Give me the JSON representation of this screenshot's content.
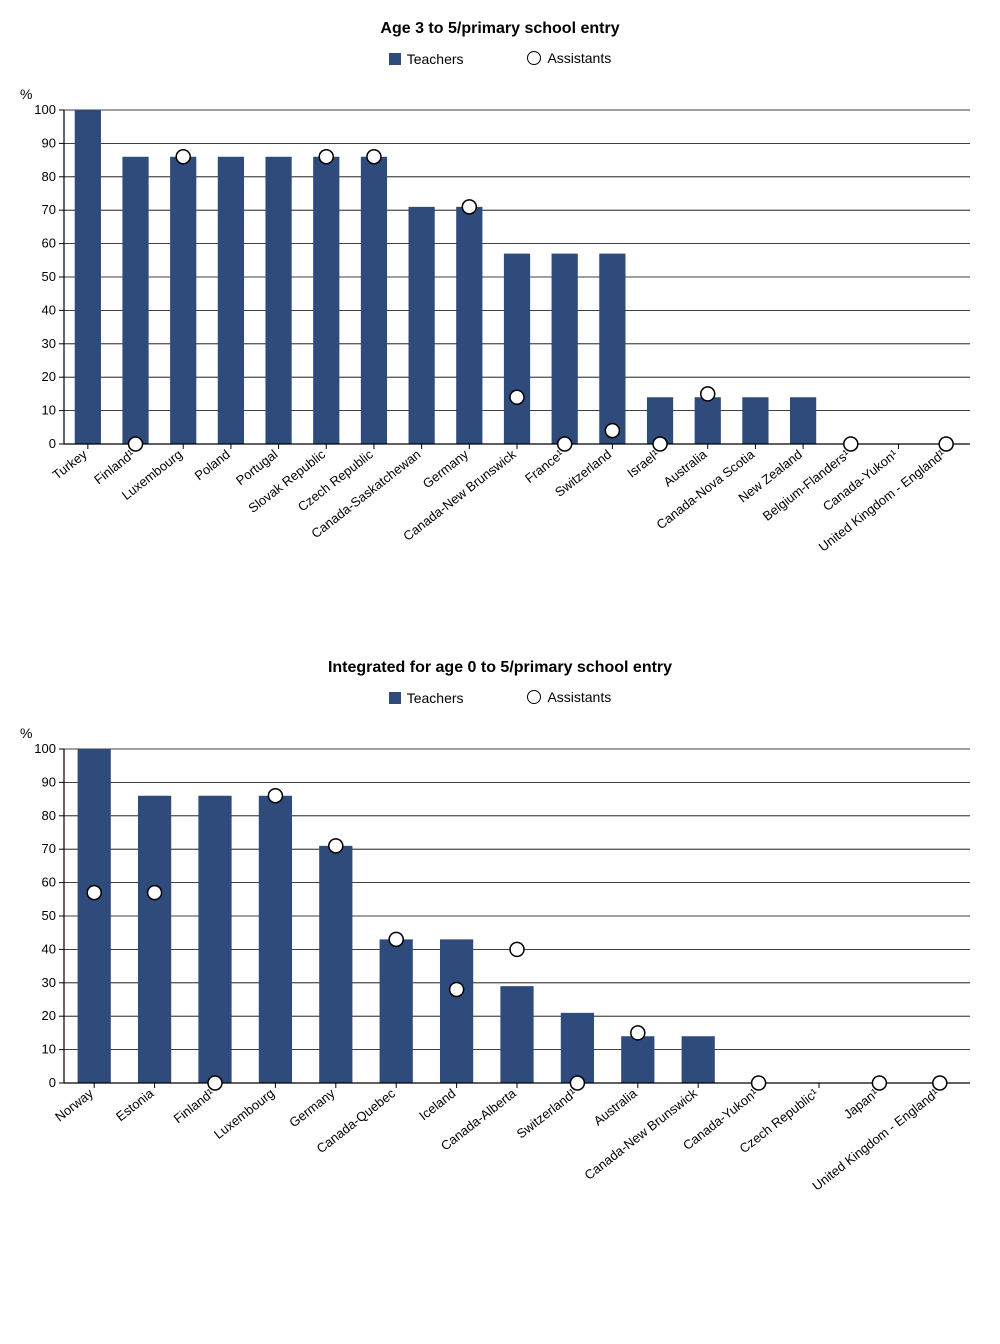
{
  "chart1": {
    "title": "Age 3 to 5/primary school entry",
    "type": "bar",
    "series_teachers_label": "Teachers",
    "series_assistants_label": "Assistants",
    "y_axis_label": "%",
    "ylim": [
      0,
      100
    ],
    "ytick_step": 10,
    "bar_color": "#2f4b7c",
    "marker_fill": "#ffffff",
    "marker_stroke": "#000000",
    "axis_color": "#000000",
    "grid_color": "#000000",
    "background_color": "#ffffff",
    "title_fontsize": 16,
    "tick_fontsize": 13,
    "categories": [
      "Turkey",
      "Finland¹",
      "Luxembourg",
      "Poland",
      "Portugal",
      "Slovak Republic",
      "Czech Republic",
      "Canada-Saskatchewan",
      "Germany",
      "Canada-New Brunswick",
      "France¹",
      "Switzerland",
      "Israel¹",
      "Australia",
      "Canada-Nova Scotia",
      "New Zealand",
      "Belgium-Flanders¹",
      "Canada-Yukon¹",
      "United Kingdom - England¹"
    ],
    "teachers": [
      100,
      86,
      86,
      86,
      86,
      86,
      86,
      71,
      71,
      57,
      57,
      57,
      14,
      14,
      14,
      14,
      0,
      0,
      0
    ],
    "assistants": [
      null,
      0,
      86,
      null,
      null,
      86,
      86,
      null,
      71,
      14,
      0,
      4,
      0,
      15,
      null,
      null,
      0,
      null,
      0
    ]
  },
  "chart2": {
    "title": "Integrated for age 0 to 5/primary school entry",
    "type": "bar",
    "series_teachers_label": "Teachers",
    "series_assistants_label": "Assistants",
    "y_axis_label": "%",
    "ylim": [
      0,
      100
    ],
    "ytick_step": 10,
    "bar_color": "#2f4b7c",
    "marker_fill": "#ffffff",
    "marker_stroke": "#000000",
    "axis_color": "#000000",
    "grid_color": "#000000",
    "background_color": "#ffffff",
    "title_fontsize": 16,
    "tick_fontsize": 13,
    "categories": [
      "Norway",
      "Estonia",
      "Finland¹",
      "Luxembourg",
      "Germany",
      "Canada-Quebec",
      "Iceland",
      "Canada-Alberta",
      "Switzerland¹",
      "Australia",
      "Canada-New Brunswick",
      "Canada-Yukon¹",
      "Czech Republic¹",
      "Japan¹",
      "United Kingdom - England¹"
    ],
    "teachers": [
      100,
      86,
      86,
      86,
      71,
      43,
      43,
      29,
      21,
      14,
      14,
      0,
      0,
      0,
      0
    ],
    "assistants": [
      57,
      57,
      0,
      86,
      71,
      43,
      28,
      40,
      0,
      15,
      null,
      0,
      null,
      0,
      0
    ]
  }
}
